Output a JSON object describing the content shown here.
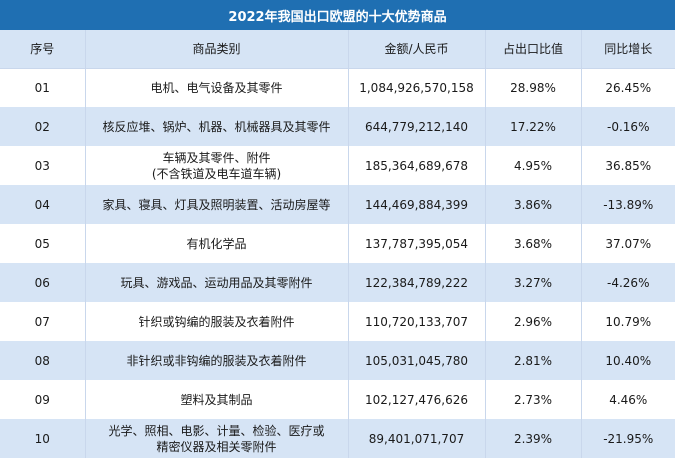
{
  "title": "2022年我国出口欧盟的十大优势商品",
  "headers": [
    "序号",
    "商品类别",
    "金额/人民币",
    "占出口比值",
    "同比增长"
  ],
  "rows": [
    {
      "no": "01",
      "name": [
        "电机、电气设备及其零件"
      ],
      "amount": "1,084,926,570,158",
      "share": "28.98%",
      "growth": "26.45%"
    },
    {
      "no": "02",
      "name": [
        "核反应堆、锅炉、机器、机械器具及其零件"
      ],
      "amount": "644,779,212,140",
      "share": "17.22%",
      "growth": "-0.16%"
    },
    {
      "no": "03",
      "name": [
        "车辆及其零件、附件",
        "(不含铁道及电车道车辆)"
      ],
      "amount": "185,364,689,678",
      "share": "4.95%",
      "growth": "36.85%"
    },
    {
      "no": "04",
      "name": [
        "家具、寝具、灯具及照明装置、活动房屋等"
      ],
      "amount": "144,469,884,399",
      "share": "3.86%",
      "growth": "-13.89%"
    },
    {
      "no": "05",
      "name": [
        "有机化学品"
      ],
      "amount": "137,787,395,054",
      "share": "3.68%",
      "growth": "37.07%"
    },
    {
      "no": "06",
      "name": [
        "玩具、游戏品、运动用品及其零附件"
      ],
      "amount": "122,384,789,222",
      "share": "3.27%",
      "growth": "-4.26%"
    },
    {
      "no": "07",
      "name": [
        "针织或钩编的服装及衣着附件"
      ],
      "amount": "110,720,133,707",
      "share": "2.96%",
      "growth": "10.79%"
    },
    {
      "no": "08",
      "name": [
        "非针织或非钩编的服装及衣着附件"
      ],
      "amount": "105,031,045,780",
      "share": "2.81%",
      "growth": "10.40%"
    },
    {
      "no": "09",
      "name": [
        "塑料及其制品"
      ],
      "amount": "102,127,476,626",
      "share": "2.73%",
      "growth": "4.46%"
    },
    {
      "no": "10",
      "name": [
        "光学、照相、电影、计量、检验、医疗或",
        "精密仪器及相关零附件"
      ],
      "amount": "89,401,071,707",
      "share": "2.39%",
      "growth": "-21.95%"
    }
  ]
}
